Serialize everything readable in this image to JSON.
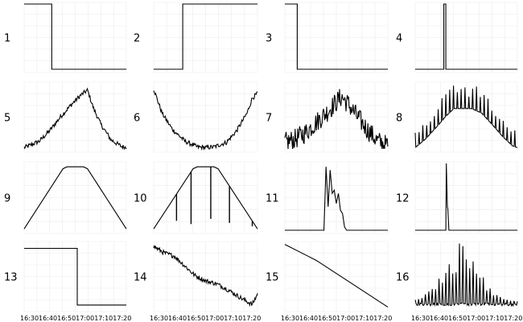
{
  "chart_data": {
    "type": "line",
    "layout": "4x4 small multiples",
    "grid": true,
    "legend": "none",
    "x_tick_labels": [
      "16:30",
      "16:40",
      "16:50",
      "17:00",
      "17:10",
      "17:20"
    ],
    "panels": [
      {
        "label": "1",
        "shape": "step-down",
        "x": [
          0,
          0.27,
          0.27,
          1
        ],
        "y": [
          1,
          1,
          0,
          0
        ]
      },
      {
        "label": "2",
        "shape": "step-up",
        "x": [
          0,
          0.28,
          0.28,
          1
        ],
        "y": [
          0,
          0,
          1,
          1
        ]
      },
      {
        "label": "3",
        "shape": "step-down",
        "x": [
          0,
          0.12,
          0.12,
          1
        ],
        "y": [
          1,
          1,
          0,
          0
        ]
      },
      {
        "label": "4",
        "shape": "spike",
        "x": [
          0,
          0.28,
          0.28,
          0.3,
          0.3,
          1
        ],
        "y": [
          0,
          0,
          1,
          1,
          0,
          0
        ]
      },
      {
        "label": "5",
        "shape": "noisy-peak",
        "x": [
          0,
          0.05,
          0.15,
          0.25,
          0.35,
          0.45,
          0.55,
          0.62,
          0.68,
          0.75,
          0.85,
          0.95,
          1
        ],
        "y": [
          0.02,
          0.05,
          0.12,
          0.28,
          0.48,
          0.66,
          0.82,
          0.9,
          0.62,
          0.38,
          0.14,
          0.04,
          0.02
        ]
      },
      {
        "label": "6",
        "shape": "noisy-valley",
        "x": [
          0,
          0.08,
          0.18,
          0.3,
          0.42,
          0.5,
          0.58,
          0.7,
          0.8,
          0.9,
          0.95,
          1
        ],
        "y": [
          0.92,
          0.55,
          0.3,
          0.12,
          0.03,
          0.02,
          0.03,
          0.1,
          0.28,
          0.55,
          0.78,
          0.85
        ]
      },
      {
        "label": "7",
        "shape": "noisy-peak-jagged",
        "x": [
          0,
          0.1,
          0.2,
          0.3,
          0.4,
          0.5,
          0.55,
          0.62,
          0.7,
          0.8,
          0.9,
          1
        ],
        "y": [
          0.1,
          0.15,
          0.25,
          0.4,
          0.55,
          0.72,
          0.8,
          0.68,
          0.5,
          0.3,
          0.12,
          0.05
        ]
      },
      {
        "label": "8",
        "shape": "trapezoid-spiky",
        "x": [
          0,
          0.1,
          0.2,
          0.3,
          0.38,
          0.45,
          0.55,
          0.65,
          0.75,
          0.85,
          0.95,
          1
        ],
        "y": [
          0.02,
          0.15,
          0.32,
          0.5,
          0.62,
          0.62,
          0.62,
          0.55,
          0.38,
          0.2,
          0.05,
          0.02
        ]
      },
      {
        "label": "9",
        "shape": "trapezoid",
        "x": [
          0,
          0.38,
          0.42,
          0.58,
          0.62,
          1
        ],
        "y": [
          0.02,
          0.92,
          0.95,
          0.95,
          0.92,
          0.02
        ]
      },
      {
        "label": "10",
        "shape": "trapezoid-dropouts",
        "x": [
          0,
          0.38,
          0.42,
          0.58,
          0.62,
          1
        ],
        "y": [
          0.02,
          0.92,
          0.95,
          0.95,
          0.92,
          0.02
        ]
      },
      {
        "label": "11",
        "shape": "burst",
        "x": [
          0,
          0.38,
          0.4,
          0.42,
          0.44,
          0.46,
          0.48,
          0.5,
          0.52,
          0.54,
          0.56,
          0.58,
          0.6,
          1
        ],
        "y": [
          0,
          0,
          0.95,
          0.35,
          0.9,
          0.55,
          0.6,
          0.4,
          0.55,
          0.3,
          0.25,
          0.05,
          0,
          0
        ]
      },
      {
        "label": "12",
        "shape": "spike",
        "x": [
          0,
          0.3,
          0.305,
          0.315,
          0.32,
          0.33,
          1
        ],
        "y": [
          0,
          0,
          1,
          0.35,
          0.32,
          0,
          0
        ]
      },
      {
        "label": "13",
        "shape": "step-down",
        "x": [
          0,
          0.52,
          0.52,
          1
        ],
        "y": [
          0.92,
          0.92,
          0.05,
          0.05
        ]
      },
      {
        "label": "14",
        "shape": "noisy-decline",
        "x": [
          0,
          0.1,
          0.2,
          0.3,
          0.4,
          0.5,
          0.6,
          0.7,
          0.8,
          0.88,
          0.95,
          1
        ],
        "y": [
          0.95,
          0.85,
          0.8,
          0.65,
          0.5,
          0.42,
          0.38,
          0.3,
          0.2,
          0.12,
          0.06,
          0.22
        ]
      },
      {
        "label": "15",
        "shape": "linear-decline",
        "x": [
          0,
          0.3,
          0.32,
          1
        ],
        "y": [
          0.98,
          0.74,
          0.72,
          0.02
        ]
      },
      {
        "label": "16",
        "shape": "spike-train",
        "x": [
          0,
          1
        ],
        "y": [
          0.05,
          0.08
        ]
      }
    ]
  }
}
